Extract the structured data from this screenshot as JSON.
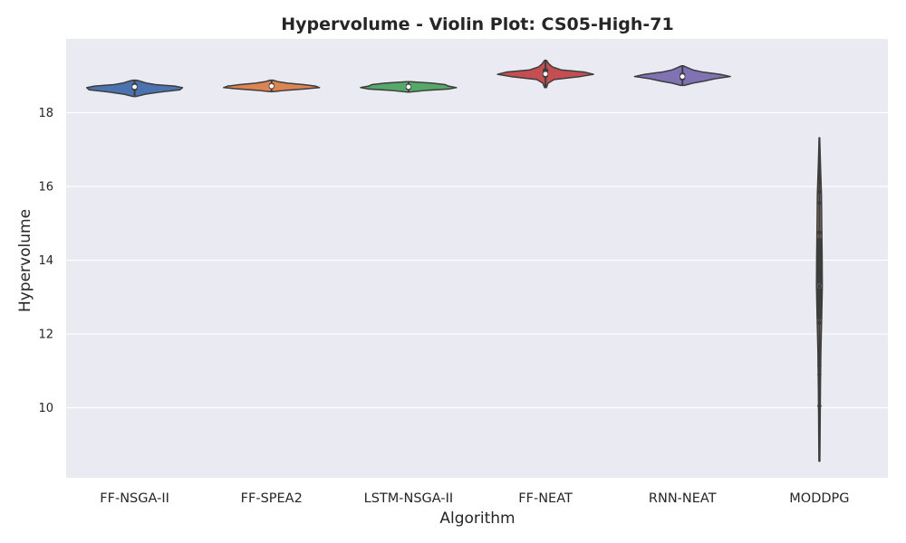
{
  "chart_data": {
    "type": "violin",
    "title": "Hypervolume - Violin Plot: CS05-High-71",
    "xlabel": "Algorithm",
    "ylabel": "Hypervolume",
    "ylim": [
      8.1,
      20.0
    ],
    "yticks": [
      10,
      12,
      14,
      16,
      18
    ],
    "grid": true,
    "categories": [
      "FF-NSGA-II",
      "FF-SPEA2",
      "LSTM-NSGA-II",
      "FF-NEAT",
      "RNN-NEAT",
      "MODDPG"
    ],
    "series": [
      {
        "category": "FF-NSGA-II",
        "color": "#4c72b0",
        "min": 18.44,
        "max": 18.88,
        "q1": 18.6,
        "median": 18.7,
        "q3": 18.8,
        "density": [
          [
            18.44,
            0.02
          ],
          [
            18.5,
            0.12
          ],
          [
            18.56,
            0.3
          ],
          [
            18.62,
            0.52
          ],
          [
            18.68,
            0.55
          ],
          [
            18.72,
            0.46
          ],
          [
            18.76,
            0.24
          ],
          [
            18.8,
            0.14
          ],
          [
            18.85,
            0.07
          ],
          [
            18.88,
            0.02
          ]
        ]
      },
      {
        "category": "FF-SPEA2",
        "color": "#dd8452",
        "min": 18.57,
        "max": 18.88,
        "q1": 18.65,
        "median": 18.72,
        "q3": 18.8,
        "density": [
          [
            18.57,
            0.02
          ],
          [
            18.6,
            0.15
          ],
          [
            18.64,
            0.4
          ],
          [
            18.68,
            0.6
          ],
          [
            18.72,
            0.55
          ],
          [
            18.76,
            0.4
          ],
          [
            18.8,
            0.2
          ],
          [
            18.84,
            0.08
          ],
          [
            18.88,
            0.02
          ]
        ]
      },
      {
        "category": "LSTM-NSGA-II",
        "color": "#55a868",
        "min": 18.56,
        "max": 18.84,
        "q1": 18.62,
        "median": 18.7,
        "q3": 18.78,
        "density": [
          [
            18.56,
            0.02
          ],
          [
            18.6,
            0.2
          ],
          [
            18.64,
            0.5
          ],
          [
            18.68,
            0.6
          ],
          [
            18.72,
            0.5
          ],
          [
            18.76,
            0.46
          ],
          [
            18.8,
            0.3
          ],
          [
            18.84,
            0.02
          ]
        ]
      },
      {
        "category": "FF-NEAT",
        "color": "#c44e52",
        "min": 18.68,
        "max": 19.42,
        "q1": 18.95,
        "median": 19.05,
        "q3": 19.2,
        "density": [
          [
            18.68,
            0.01
          ],
          [
            18.8,
            0.03
          ],
          [
            18.9,
            0.1
          ],
          [
            18.98,
            0.4
          ],
          [
            19.04,
            0.55
          ],
          [
            19.1,
            0.45
          ],
          [
            19.16,
            0.18
          ],
          [
            19.24,
            0.08
          ],
          [
            19.32,
            0.04
          ],
          [
            19.42,
            0.01
          ]
        ]
      },
      {
        "category": "RNN-NEAT",
        "color": "#8172b3",
        "min": 18.74,
        "max": 19.27,
        "q1": 18.88,
        "median": 18.98,
        "q3": 19.08,
        "density": [
          [
            18.74,
            0.02
          ],
          [
            18.8,
            0.12
          ],
          [
            18.86,
            0.26
          ],
          [
            18.92,
            0.38
          ],
          [
            18.98,
            0.56
          ],
          [
            19.04,
            0.44
          ],
          [
            19.1,
            0.24
          ],
          [
            19.16,
            0.12
          ],
          [
            19.22,
            0.06
          ],
          [
            19.27,
            0.01
          ]
        ]
      },
      {
        "category": "MODDPG",
        "color": "#937860",
        "min": 8.55,
        "max": 17.32,
        "q1": 12.4,
        "median": 13.3,
        "q3": 14.6,
        "points": [
          15.85,
          15.55,
          14.75,
          14.4,
          13.95,
          13.6,
          13.3,
          12.95,
          12.6,
          12.3,
          11.15,
          10.9,
          10.05
        ],
        "density": [
          [
            8.55,
            0.003
          ],
          [
            9.5,
            0.005
          ],
          [
            10.5,
            0.007
          ],
          [
            11.5,
            0.01
          ],
          [
            12.5,
            0.016
          ],
          [
            13.3,
            0.02
          ],
          [
            14.0,
            0.019
          ],
          [
            15.0,
            0.016
          ],
          [
            15.8,
            0.014
          ],
          [
            16.5,
            0.008
          ],
          [
            17.32,
            0.002
          ]
        ]
      }
    ]
  }
}
